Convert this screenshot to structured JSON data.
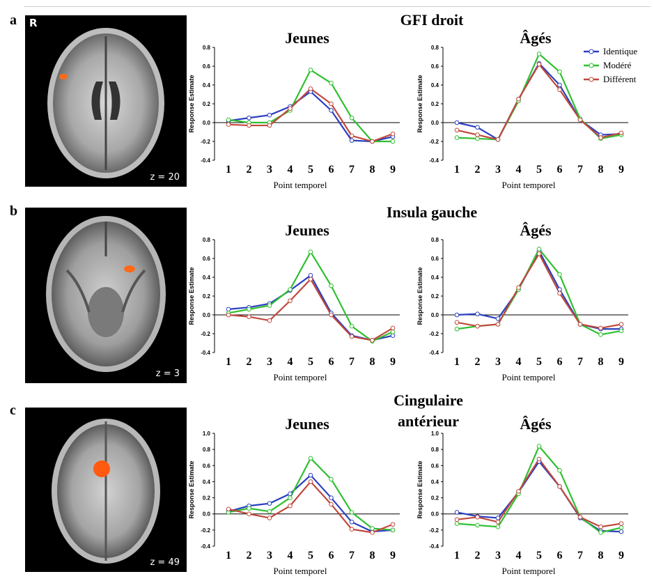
{
  "panels": [
    {
      "letter": "a",
      "region": "GFI droit",
      "brain_label": "z = 20",
      "orientation_label": "R"
    },
    {
      "letter": "b",
      "region": "Insula gauche",
      "brain_label": "z = 3"
    },
    {
      "letter": "c",
      "region": "Cingulaire antérieur",
      "brain_label": "z = 49"
    }
  ],
  "legend": [
    {
      "name": "Identique",
      "color": "#2a3fbf"
    },
    {
      "name": "Modéré",
      "color": "#2fbf2f"
    },
    {
      "name": "Différent",
      "color": "#c0483c"
    }
  ],
  "chart_data": [
    {
      "type": "line",
      "panel": "a",
      "title": "Jeunes",
      "xlabel": "Point temporel",
      "ylabel": "Response Estimate",
      "x": [
        1,
        2,
        3,
        4,
        5,
        6,
        7,
        8,
        9
      ],
      "yticks": [
        -0.4,
        -0.2,
        0,
        0.2,
        0.4,
        0.6,
        0.8
      ],
      "ylim": [
        -0.4,
        0.8
      ],
      "series": [
        {
          "name": "Identique",
          "color": "#2a3fbf",
          "values": [
            0.02,
            0.05,
            0.08,
            0.17,
            0.33,
            0.13,
            -0.19,
            -0.2,
            -0.15
          ]
        },
        {
          "name": "Modéré",
          "color": "#2fbf2f",
          "values": [
            0.03,
            0.0,
            0.0,
            0.13,
            0.56,
            0.42,
            0.05,
            -0.2,
            -0.2
          ]
        },
        {
          "name": "Différent",
          "color": "#c0483c",
          "values": [
            -0.02,
            -0.03,
            -0.03,
            0.15,
            0.36,
            0.2,
            -0.14,
            -0.2,
            -0.12
          ]
        }
      ]
    },
    {
      "type": "line",
      "panel": "a",
      "title": "Âgés",
      "xlabel": "Point temporel",
      "ylabel": "Response Estimate",
      "x": [
        1,
        2,
        3,
        4,
        5,
        6,
        7,
        8,
        9
      ],
      "yticks": [
        -0.4,
        -0.2,
        0,
        0.2,
        0.4,
        0.6,
        0.8
      ],
      "ylim": [
        -0.4,
        0.8
      ],
      "series": [
        {
          "name": "Identique",
          "color": "#2a3fbf",
          "values": [
            0.0,
            -0.05,
            -0.18,
            0.25,
            0.63,
            0.4,
            0.03,
            -0.13,
            -0.12
          ]
        },
        {
          "name": "Modéré",
          "color": "#2fbf2f",
          "values": [
            -0.16,
            -0.17,
            -0.18,
            0.23,
            0.73,
            0.54,
            0.04,
            -0.17,
            -0.13
          ]
        },
        {
          "name": "Différent",
          "color": "#c0483c",
          "values": [
            -0.08,
            -0.13,
            -0.18,
            0.25,
            0.62,
            0.35,
            0.03,
            -0.16,
            -0.11
          ]
        }
      ]
    },
    {
      "type": "line",
      "panel": "b",
      "title": "Jeunes",
      "xlabel": "Point temporel",
      "ylabel": "Response Estimate",
      "x": [
        1,
        2,
        3,
        4,
        5,
        6,
        7,
        8,
        9
      ],
      "yticks": [
        -0.4,
        -0.2,
        0,
        0.2,
        0.4,
        0.6,
        0.8
      ],
      "ylim": [
        -0.4,
        0.8
      ],
      "series": [
        {
          "name": "Identique",
          "color": "#2a3fbf",
          "values": [
            0.06,
            0.08,
            0.12,
            0.26,
            0.42,
            0.02,
            -0.22,
            -0.27,
            -0.22
          ]
        },
        {
          "name": "Modéré",
          "color": "#2fbf2f",
          "values": [
            0.02,
            0.06,
            0.1,
            0.27,
            0.67,
            0.31,
            -0.12,
            -0.28,
            -0.18
          ]
        },
        {
          "name": "Différent",
          "color": "#c0483c",
          "values": [
            0.0,
            -0.02,
            -0.06,
            0.15,
            0.38,
            0.0,
            -0.23,
            -0.27,
            -0.14
          ]
        }
      ]
    },
    {
      "type": "line",
      "panel": "b",
      "title": "Âgés",
      "xlabel": "Point temporel",
      "ylabel": "Response Estimate",
      "x": [
        1,
        2,
        3,
        4,
        5,
        6,
        7,
        8,
        9
      ],
      "yticks": [
        -0.4,
        -0.2,
        0,
        0.2,
        0.4,
        0.6,
        0.8
      ],
      "ylim": [
        -0.4,
        0.8
      ],
      "series": [
        {
          "name": "Identique",
          "color": "#2a3fbf",
          "values": [
            0.0,
            0.01,
            -0.04,
            0.27,
            0.68,
            0.27,
            -0.1,
            -0.15,
            -0.15
          ]
        },
        {
          "name": "Modéré",
          "color": "#2fbf2f",
          "values": [
            -0.15,
            -0.12,
            -0.1,
            0.27,
            0.7,
            0.43,
            -0.1,
            -0.21,
            -0.17
          ]
        },
        {
          "name": "Différent",
          "color": "#c0483c",
          "values": [
            -0.08,
            -0.12,
            -0.1,
            0.29,
            0.65,
            0.23,
            -0.1,
            -0.14,
            -0.1
          ]
        }
      ]
    },
    {
      "type": "line",
      "panel": "c",
      "title": "Jeunes",
      "xlabel": "Point temporel",
      "ylabel": "Response Estimate",
      "x": [
        1,
        2,
        3,
        4,
        5,
        6,
        7,
        8,
        9
      ],
      "yticks": [
        -0.4,
        -0.2,
        0,
        0.2,
        0.4,
        0.6,
        0.8,
        1.0
      ],
      "ylim": [
        -0.4,
        1.0
      ],
      "series": [
        {
          "name": "Identique",
          "color": "#2a3fbf",
          "values": [
            0.03,
            0.1,
            0.13,
            0.25,
            0.48,
            0.2,
            -0.1,
            -0.22,
            -0.2
          ]
        },
        {
          "name": "Modéré",
          "color": "#2fbf2f",
          "values": [
            0.02,
            0.07,
            0.03,
            0.2,
            0.69,
            0.43,
            0.02,
            -0.18,
            -0.2
          ]
        },
        {
          "name": "Différent",
          "color": "#c0483c",
          "values": [
            0.06,
            0.0,
            -0.05,
            0.1,
            0.4,
            0.12,
            -0.19,
            -0.23,
            -0.13
          ]
        }
      ]
    },
    {
      "type": "line",
      "panel": "c",
      "title": "Âgés",
      "xlabel": "Point temporel",
      "ylabel": "Response Estimate",
      "x": [
        1,
        2,
        3,
        4,
        5,
        6,
        7,
        8,
        9
      ],
      "yticks": [
        -0.4,
        -0.2,
        0,
        0.2,
        0.4,
        0.6,
        0.8,
        1.0
      ],
      "ylim": [
        -0.4,
        1.0
      ],
      "series": [
        {
          "name": "Identique",
          "color": "#2a3fbf",
          "values": [
            0.02,
            -0.03,
            -0.05,
            0.27,
            0.65,
            0.34,
            -0.05,
            -0.21,
            -0.22
          ]
        },
        {
          "name": "Modéré",
          "color": "#2fbf2f",
          "values": [
            -0.12,
            -0.14,
            -0.16,
            0.25,
            0.84,
            0.54,
            -0.04,
            -0.23,
            -0.17
          ]
        },
        {
          "name": "Différent",
          "color": "#c0483c",
          "values": [
            -0.07,
            -0.04,
            -0.1,
            0.28,
            0.68,
            0.34,
            -0.04,
            -0.16,
            -0.12
          ]
        }
      ]
    }
  ]
}
